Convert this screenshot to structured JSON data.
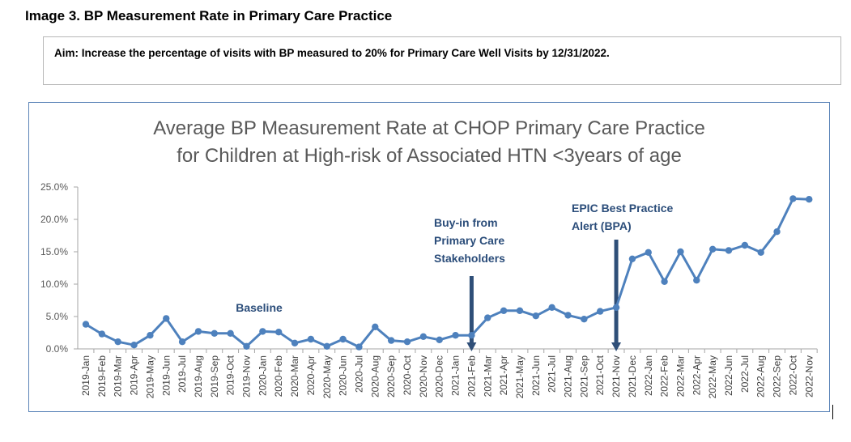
{
  "page": {
    "heading": "Image 3. BP Measurement Rate in Primary Care Practice",
    "aim": "Aim: Increase the percentage of visits with BP measured to 20% for Primary Care Well Visits by 12/31/2022."
  },
  "colors": {
    "line": "#4e81bd",
    "arrow": "#2f4f78",
    "annotation": "#2b4d7a",
    "frame": "#5b84b8",
    "grid": "#d9d9d9"
  },
  "chart_data": {
    "type": "line",
    "title": "Average BP Measurement Rate at CHOP Primary Care Practice for Children at High-risk of Associated HTN <3years of age",
    "title_lines": [
      "Average BP Measurement Rate at CHOP Primary Care Practice",
      "for Children at High-risk of Associated HTN <3years of age"
    ],
    "xlabel": "",
    "ylabel": "",
    "ylim": [
      0,
      25
    ],
    "y_ticks": [
      0,
      5,
      10,
      15,
      20,
      25
    ],
    "y_tick_labels": [
      "0.0%",
      "5.0%",
      "10.0%",
      "15.0%",
      "20.0%",
      "25.0%"
    ],
    "grid": false,
    "categories": [
      "2019-Jan",
      "2019-Feb",
      "2019-Mar",
      "2019-Apr",
      "2019-May",
      "2019-Jun",
      "2019-Jul",
      "2019-Aug",
      "2019-Sep",
      "2019-Oct",
      "2019-Nov",
      "2020-Jan",
      "2020-Feb",
      "2020-Mar",
      "2020-Apr",
      "2020-May",
      "2020-Jun",
      "2020-Jul",
      "2020-Aug",
      "2020-Sep",
      "2020-Oct",
      "2020-Nov",
      "2020-Dec",
      "2021-Jan",
      "2021-Feb",
      "2021-Mar",
      "2021-Apr",
      "2021-May",
      "2021-Jun",
      "2021-Jul",
      "2021-Aug",
      "2021-Sep",
      "2021-Oct",
      "2021-Nov",
      "2021-Dec",
      "2022-Jan",
      "2022-Feb",
      "2022-Mar",
      "2022-Apr",
      "2022-May",
      "2022-Jun",
      "2022-Jul",
      "2022-Aug",
      "2022-Sep",
      "2022-Oct",
      "2022-Nov"
    ],
    "series": [
      {
        "values": [
          3.8,
          2.3,
          1.1,
          0.6,
          2.1,
          4.7,
          1.1,
          2.7,
          2.4,
          2.4,
          0.4,
          2.7,
          2.6,
          0.9,
          1.5,
          0.4,
          1.5,
          0.3,
          3.4,
          1.3,
          1.1,
          1.9,
          1.4,
          2.1,
          2.1,
          4.8,
          5.9,
          5.9,
          5.1,
          6.4,
          5.2,
          4.6,
          5.8,
          6.4,
          13.9,
          14.9,
          10.4,
          15.0,
          10.6,
          15.4,
          15.2,
          16.0,
          14.9,
          18.1,
          23.2,
          23.1
        ]
      }
    ],
    "annotations": [
      {
        "text_lines": [
          "Baseline"
        ]
      },
      {
        "text_lines": [
          "Buy-in from",
          "Primary Care",
          "Stakeholders"
        ],
        "at_category": "2021-Feb"
      },
      {
        "text_lines": [
          "EPIC Best Practice",
          "Alert (BPA)"
        ],
        "at_category": "2021-Nov"
      }
    ]
  }
}
